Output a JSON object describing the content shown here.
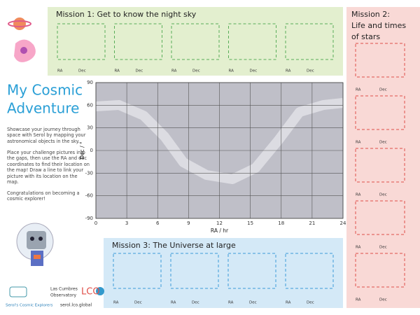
{
  "left": {
    "title": [
      "My Cosmic",
      "Adventure"
    ],
    "paragraphs": [
      "Showcase your journey through space with Serol by mapping your astronomical objects in the sky.",
      "Place your challenge pictures into the gaps, then use the RA and dec coordinates to find their location on the map! Draw a line to link your picture with its location on the map.",
      "Congratulations on becoming a cosmic explorer!"
    ]
  },
  "mission1": {
    "title": "Mission 1: Get to know the night sky",
    "slots": [
      [
        "RA",
        "Dec"
      ],
      [
        "RA",
        "Dec"
      ],
      [
        "RA",
        "Dec"
      ],
      [
        "RA",
        "Dec"
      ],
      [
        "RA",
        "Dec"
      ]
    ]
  },
  "mission2": {
    "title": [
      "Mission 2:",
      "Life and times",
      "of stars"
    ],
    "slots": [
      [
        "RA",
        "Dec"
      ],
      [
        "RA",
        "Dec"
      ],
      [
        "RA",
        "Dec"
      ],
      [
        "RA",
        "Dec"
      ],
      [
        "RA",
        "Dec"
      ]
    ]
  },
  "mission3": {
    "title": "Mission 3: The Universe at large",
    "slots": [
      [
        "RA",
        "Dec"
      ],
      [
        "RA",
        "Dec"
      ],
      [
        "RA",
        "Dec"
      ],
      [
        "RA",
        "Dec"
      ]
    ]
  },
  "sky_map": {
    "xlabel": "RA / hr",
    "ylabel": "Dec / °",
    "xlim": [
      0,
      24
    ],
    "ylim": [
      -90,
      90
    ],
    "xticks": [
      0,
      3,
      6,
      9,
      12,
      15,
      18,
      21,
      24
    ],
    "yticks": [
      -90,
      -60,
      -30,
      0,
      30,
      60,
      90
    ]
  },
  "footer": {
    "brand": "Serol's Cosmic Explorers",
    "org": [
      "Las Cumbres",
      "Observatory"
    ],
    "logo": "LCO",
    "url": "serol.lco.global"
  }
}
